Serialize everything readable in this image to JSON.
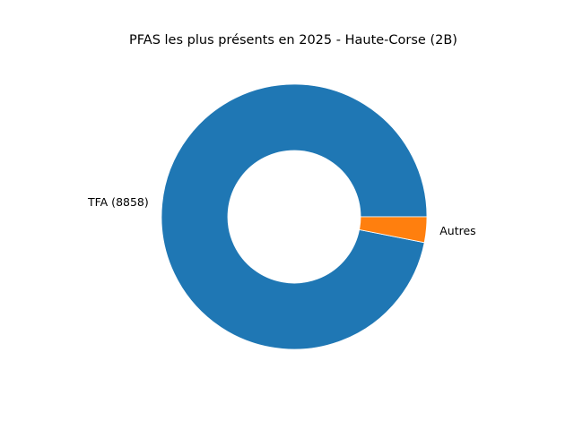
{
  "chart_data": {
    "type": "pie",
    "title": "PFAS les plus présents en 2025 - Haute-Corse (2B)",
    "donut": true,
    "slices": [
      {
        "label": "TFA (8858)",
        "value": 8858,
        "color": "#1f77b4"
      },
      {
        "label": "Autres",
        "value": 285,
        "color": "#ff7f0e"
      }
    ],
    "start_angle_deg": 0,
    "direction": "counterclockwise"
  }
}
